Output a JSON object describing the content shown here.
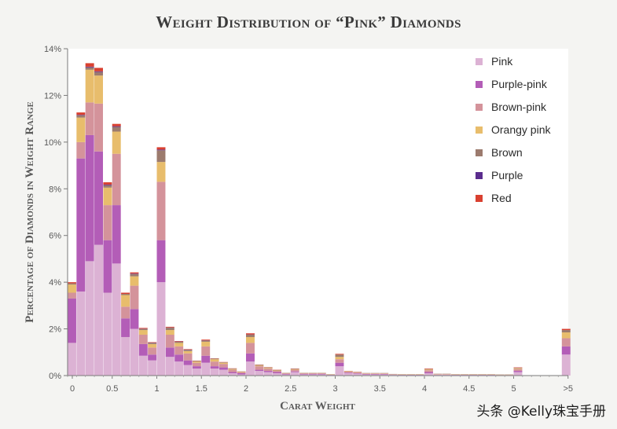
{
  "chart_data": {
    "type": "bar",
    "title": "Weight Distribution of “Pink” Diamonds",
    "xlabel": "Carat Weight",
    "ylabel": "Percentage of Diamonds in Weight Range",
    "ylim": [
      0,
      14
    ],
    "yticks": [
      "0%",
      "2%",
      "4%",
      "6%",
      "8%",
      "10%",
      "12%",
      "14%"
    ],
    "xticks": [
      "0",
      "0.5",
      "1",
      "1.5",
      "2",
      "2.5",
      "3",
      "3.5",
      "4",
      "4.5",
      "5",
      ">5"
    ],
    "bin_width": 0.1,
    "x": [
      0,
      0.1,
      0.2,
      0.3,
      0.4,
      0.5,
      0.6,
      0.7,
      0.8,
      0.9,
      1.0,
      1.1,
      1.2,
      1.3,
      1.4,
      1.5,
      1.6,
      1.7,
      1.8,
      1.9,
      2.0,
      2.1,
      2.2,
      2.3,
      2.4,
      2.5,
      2.6,
      2.7,
      2.8,
      2.9,
      3.0,
      3.1,
      3.2,
      3.3,
      3.4,
      3.5,
      3.6,
      3.7,
      3.8,
      3.9,
      4.0,
      4.1,
      4.2,
      4.3,
      4.4,
      4.5,
      4.6,
      4.7,
      4.8,
      4.9,
      5.0,
      5.1,
      5.2,
      5.3,
      5.4,
      ">5"
    ],
    "legend_position": "top-right",
    "grid": false,
    "series": [
      {
        "name": "Pink",
        "color": "#dcb2d4",
        "values": [
          1.4,
          3.6,
          4.9,
          5.6,
          3.55,
          4.8,
          1.65,
          2.0,
          0.85,
          0.65,
          4.0,
          0.8,
          0.6,
          0.45,
          0.3,
          0.55,
          0.3,
          0.25,
          0.1,
          0.05,
          0.6,
          0.2,
          0.15,
          0.1,
          0.05,
          0.15,
          0.05,
          0.05,
          0.05,
          0.02,
          0.4,
          0.1,
          0.08,
          0.05,
          0.05,
          0.05,
          0.03,
          0.02,
          0.02,
          0.02,
          0.1,
          0.03,
          0.03,
          0.02,
          0.02,
          0.02,
          0.02,
          0.02,
          0.01,
          0.01,
          0.15,
          0,
          0,
          0,
          0,
          0.9
        ]
      },
      {
        "name": "Purple-pink",
        "color": "#b35db7",
        "values": [
          1.9,
          5.7,
          5.4,
          4.0,
          2.25,
          2.5,
          0.8,
          0.85,
          0.5,
          0.25,
          1.8,
          0.4,
          0.3,
          0.2,
          0.1,
          0.3,
          0.1,
          0.1,
          0.05,
          0.05,
          0.35,
          0.05,
          0.05,
          0.05,
          0.02,
          0.03,
          0.02,
          0.02,
          0.02,
          0.01,
          0.15,
          0.03,
          0.02,
          0.02,
          0.02,
          0.02,
          0.01,
          0.01,
          0.01,
          0.01,
          0.05,
          0.01,
          0.01,
          0.01,
          0.01,
          0.01,
          0.01,
          0.01,
          0.01,
          0.01,
          0.05,
          0,
          0,
          0,
          0,
          0.35
        ]
      },
      {
        "name": "Brown-pink",
        "color": "#d4939b",
        "values": [
          0.25,
          0.7,
          1.4,
          2.05,
          1.5,
          2.2,
          0.5,
          1.0,
          0.4,
          0.3,
          2.5,
          0.55,
          0.35,
          0.3,
          0.15,
          0.4,
          0.2,
          0.15,
          0.1,
          0.05,
          0.45,
          0.15,
          0.1,
          0.05,
          0.03,
          0.07,
          0.03,
          0.03,
          0.03,
          0.01,
          0.15,
          0.03,
          0.03,
          0.02,
          0.02,
          0.02,
          0.01,
          0.01,
          0.01,
          0.01,
          0.08,
          0.02,
          0.02,
          0.01,
          0.01,
          0.01,
          0.01,
          0.01,
          0.01,
          0.01,
          0.08,
          0,
          0,
          0,
          0,
          0.35
        ]
      },
      {
        "name": "Orangy pink",
        "color": "#e8bd6c",
        "values": [
          0.35,
          1.05,
          1.4,
          1.2,
          0.75,
          0.95,
          0.5,
          0.4,
          0.2,
          0.15,
          0.85,
          0.2,
          0.15,
          0.1,
          0.05,
          0.2,
          0.1,
          0.05,
          0.03,
          0.02,
          0.25,
          0.03,
          0.03,
          0.02,
          0.01,
          0.02,
          0.01,
          0.01,
          0.01,
          0.01,
          0.1,
          0.02,
          0.01,
          0.01,
          0.01,
          0.01,
          0.01,
          0.01,
          0.01,
          0.01,
          0.03,
          0.01,
          0.01,
          0.01,
          0.01,
          0.01,
          0.01,
          0.01,
          0.01,
          0.01,
          0.03,
          0,
          0,
          0,
          0,
          0.25
        ]
      },
      {
        "name": "Brown",
        "color": "#9c7b6e",
        "values": [
          0.05,
          0.1,
          0.1,
          0.15,
          0.1,
          0.2,
          0.05,
          0.1,
          0.05,
          0.05,
          0.5,
          0.1,
          0.05,
          0.05,
          0.03,
          0.05,
          0.03,
          0.02,
          0.02,
          0.01,
          0.1,
          0.03,
          0.02,
          0.02,
          0.01,
          0.02,
          0.01,
          0.01,
          0.01,
          0.01,
          0.1,
          0.01,
          0.01,
          0.01,
          0.01,
          0.01,
          0.01,
          0.01,
          0.01,
          0.01,
          0.02,
          0.01,
          0.01,
          0.01,
          0.01,
          0.01,
          0.01,
          0.01,
          0.01,
          0.01,
          0.02,
          0,
          0,
          0,
          0,
          0.1
        ]
      },
      {
        "name": "Purple",
        "color": "#5b2d8e",
        "values": [
          0.0,
          0.02,
          0.03,
          0.03,
          0.03,
          0.03,
          0.0,
          0.02,
          0.01,
          0.01,
          0.03,
          0.01,
          0.01,
          0.01,
          0.0,
          0.01,
          0.0,
          0.0,
          0.0,
          0.0,
          0.01,
          0.0,
          0.0,
          0.0,
          0.0,
          0.0,
          0.0,
          0.0,
          0.0,
          0.0,
          0.0,
          0.0,
          0.0,
          0.0,
          0.0,
          0.0,
          0.0,
          0.0,
          0.0,
          0.0,
          0.0,
          0.0,
          0.0,
          0.0,
          0.0,
          0.0,
          0.0,
          0.0,
          0.0,
          0.0,
          0.0,
          0,
          0,
          0,
          0,
          0.0
        ]
      },
      {
        "name": "Red",
        "color": "#d94030",
        "values": [
          0.05,
          0.1,
          0.15,
          0.15,
          0.1,
          0.1,
          0.05,
          0.05,
          0.03,
          0.02,
          0.1,
          0.03,
          0.02,
          0.02,
          0.01,
          0.03,
          0.01,
          0.01,
          0.01,
          0.0,
          0.05,
          0.01,
          0.01,
          0.01,
          0.0,
          0.01,
          0.0,
          0.0,
          0.0,
          0.0,
          0.03,
          0.01,
          0.01,
          0.0,
          0.0,
          0.0,
          0.0,
          0.0,
          0.0,
          0.0,
          0.02,
          0.0,
          0.0,
          0.0,
          0.0,
          0.0,
          0.0,
          0.0,
          0.0,
          0.0,
          0.02,
          0,
          0,
          0,
          0,
          0.05
        ]
      }
    ]
  },
  "watermark": "头条 @Kelly珠宝手册"
}
